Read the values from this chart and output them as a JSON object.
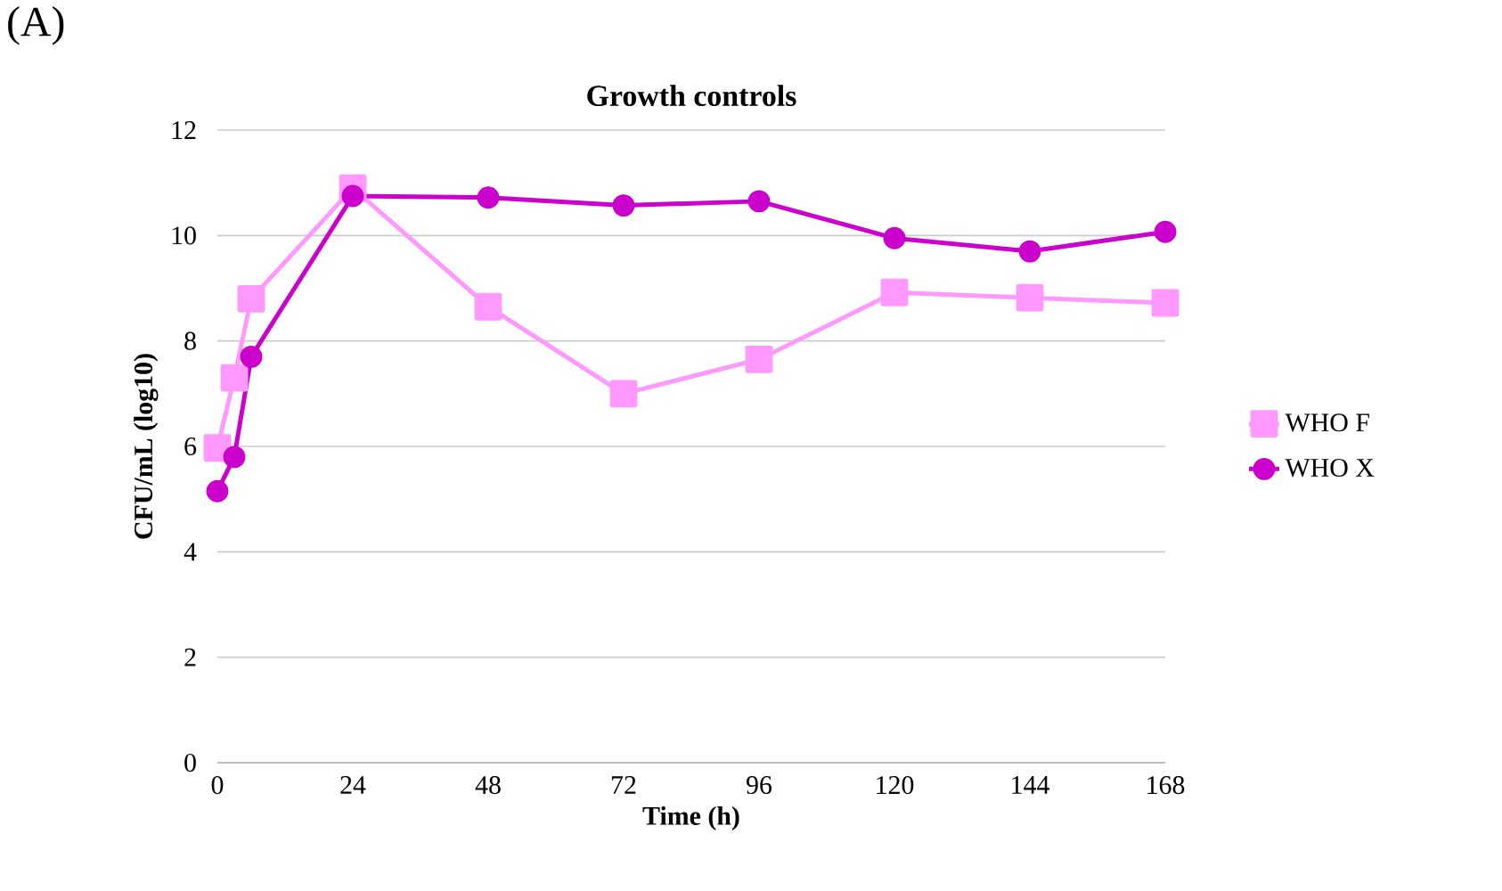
{
  "chart_data": {
    "type": "line",
    "title": "Growth controls",
    "xlabel": "Time (h)",
    "ylabel": "CFU/mL (log10)",
    "annotations": [
      "(A)"
    ],
    "xlim": [
      0,
      168
    ],
    "xticks": [
      0,
      24,
      48,
      72,
      96,
      120,
      144,
      168
    ],
    "ylim": [
      0,
      12
    ],
    "yticks": [
      0,
      2,
      4,
      6,
      8,
      10,
      12
    ],
    "grid": "y",
    "legend": "right",
    "line_style": "solid",
    "series": [
      {
        "name": "WHO F",
        "color": "#ff99ff",
        "marker": "square",
        "x": [
          0,
          3,
          6,
          24,
          48,
          72,
          96,
          120,
          144,
          168
        ],
        "values": [
          5.97,
          7.3,
          8.8,
          10.9,
          8.65,
          7.0,
          7.65,
          8.92,
          8.82,
          8.72
        ]
      },
      {
        "name": "WHO X",
        "color": "#cc00cc",
        "marker": "circle",
        "x": [
          0,
          3,
          6,
          24,
          48,
          72,
          96,
          120,
          144,
          168
        ],
        "values": [
          5.15,
          5.8,
          7.7,
          10.75,
          10.72,
          10.57,
          10.65,
          9.95,
          9.7,
          10.07
        ]
      }
    ]
  }
}
